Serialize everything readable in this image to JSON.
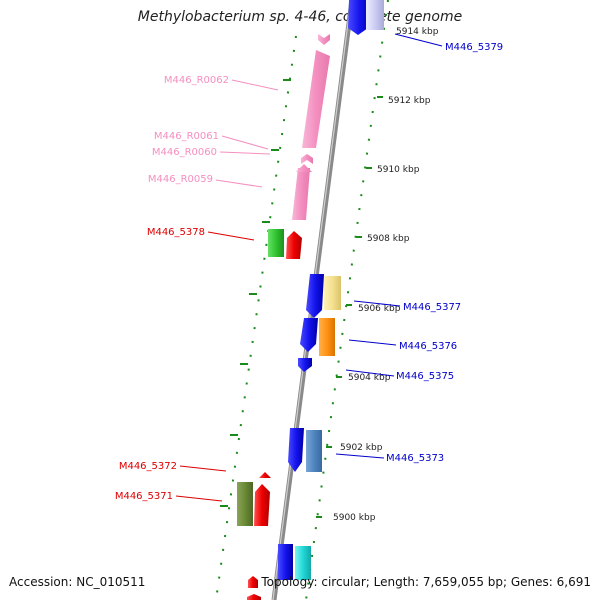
{
  "title": "Methylobacterium sp. 4-46, complete genome",
  "accession": "Accession: NC_010511",
  "topology": "Topology: circular; Length: 7,659,055 bp; Genes: 6,691",
  "colors": {
    "backbone": "#8a8a8a",
    "ticks_minor": "#1a8a1a",
    "label_pink": "#f48fc0",
    "label_red": "#dd0000",
    "label_blue": "#0000cc"
  },
  "scale_labels": [
    "5914 kbp",
    "5912 kbp",
    "5910 kbp",
    "5908 kbp",
    "5906 kbp",
    "5904 kbp",
    "5902 kbp",
    "5900 kbp"
  ],
  "gene_labels": {
    "r0062": "M446_R0062",
    "r0061": "M446_R0061",
    "r0060": "M446_R0060",
    "r0059": "M446_R0059",
    "g5378": "M446_5378",
    "g5372": "M446_5372",
    "g5371": "M446_5371",
    "g5379": "M446_5379",
    "g5377": "M446_5377",
    "g5376": "M446_5376",
    "g5375": "M446_5375",
    "g5373": "M446_5373"
  }
}
